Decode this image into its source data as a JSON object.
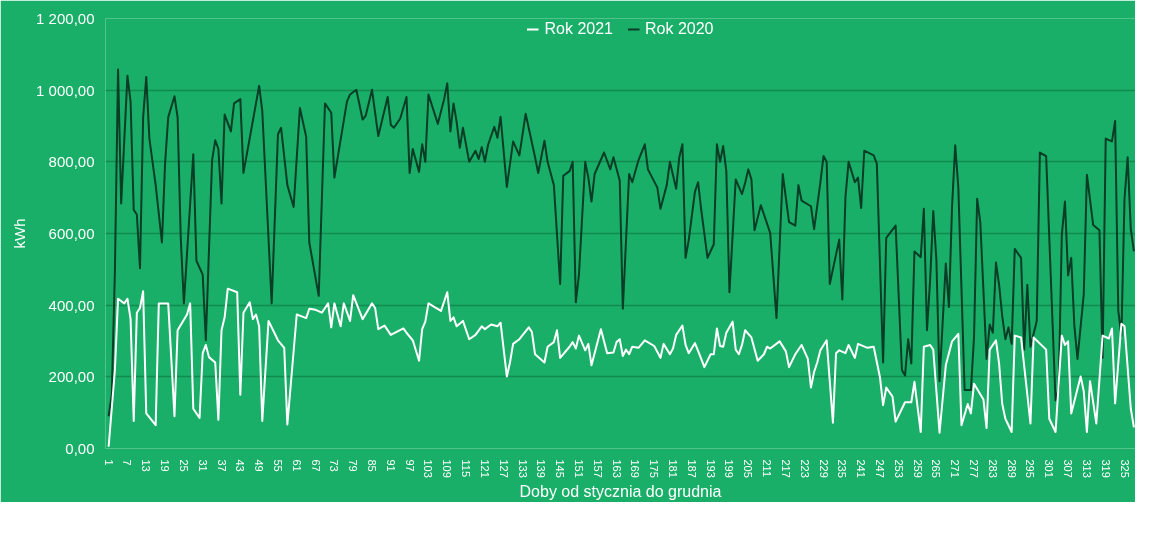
{
  "chart_data": {
    "type": "line",
    "xlabel": "Doby od stycznia do grudnia",
    "ylabel": "kWh",
    "legend": "top",
    "grid": "y",
    "line_style": "solid",
    "marker": "none",
    "xlim": [
      0,
      328.5
    ],
    "xticks": [
      1,
      7,
      13,
      19,
      25,
      31,
      37,
      43,
      49,
      55,
      61,
      67,
      73,
      79,
      85,
      91,
      97,
      103,
      109,
      115,
      121,
      127,
      133,
      139,
      145,
      151,
      157,
      163,
      169,
      175,
      181,
      187,
      193,
      199,
      205,
      211,
      217,
      223,
      229,
      235,
      241,
      247,
      253,
      259,
      265,
      271,
      277,
      283,
      289,
      295,
      301,
      307,
      313,
      319,
      325
    ],
    "ylim": [
      0,
      1200
    ],
    "yticks": [
      {
        "value": 0,
        "label": "0,00"
      },
      {
        "value": 200,
        "label": "200,00"
      },
      {
        "value": 400,
        "label": "400,00"
      },
      {
        "value": 600,
        "label": "600,00"
      },
      {
        "value": 800,
        "label": "800,00"
      },
      {
        "value": 1000,
        "label": "1 000,00"
      },
      {
        "value": 1200,
        "label": "1 200,00"
      }
    ],
    "series": [
      {
        "name": "Rok 2021",
        "color": "#ffffff",
        "x": [
          1,
          3,
          4,
          6,
          7,
          8,
          9,
          10,
          11,
          12,
          13,
          16,
          17,
          20,
          22,
          23,
          26,
          27,
          28,
          30,
          31,
          32,
          33,
          35,
          36,
          37,
          38,
          39,
          42,
          43,
          44,
          46,
          47,
          48,
          49,
          50,
          52,
          55,
          57,
          58,
          61,
          64,
          65,
          67,
          69,
          71,
          72,
          73,
          75,
          76,
          78,
          79,
          82,
          85,
          86,
          87,
          89,
          91,
          95,
          96,
          98,
          100,
          101,
          102,
          103,
          107,
          109,
          110,
          111,
          112,
          114,
          116,
          118,
          120,
          121,
          123,
          125,
          126,
          128,
          129,
          130,
          132,
          135,
          136,
          137,
          140,
          141,
          143,
          144,
          145,
          148,
          149,
          150,
          151,
          153,
          154,
          155,
          158,
          160,
          162,
          163,
          164,
          165,
          166,
          167,
          168,
          170,
          172,
          175,
          177,
          178,
          180,
          181,
          182,
          184,
          185,
          186,
          188,
          190,
          191,
          193,
          194,
          195,
          196,
          197,
          198,
          200,
          201,
          202,
          203,
          204,
          206,
          208,
          210,
          211,
          212,
          215,
          217,
          218,
          220,
          222,
          224,
          225,
          226,
          227,
          228,
          230,
          232,
          233,
          234,
          236,
          237,
          239,
          240,
          243,
          245,
          247,
          248,
          249,
          251,
          252,
          255,
          257,
          258,
          260,
          261,
          263,
          264,
          266,
          268,
          269,
          270,
          272,
          273,
          275,
          276,
          277,
          280,
          281,
          282,
          284,
          285,
          286,
          287,
          289,
          290,
          292,
          295,
          296,
          300,
          301,
          303,
          305,
          306,
          307,
          308,
          311,
          312,
          313,
          314,
          316,
          318,
          320,
          321,
          322,
          324,
          325,
          327,
          328
        ],
        "values": [
          5,
          219,
          418,
          405,
          418,
          361,
          77,
          379,
          392,
          439,
          98,
          65,
          405,
          405,
          90,
          330,
          374,
          405,
          111,
          85,
          266,
          289,
          255,
          240,
          80,
          330,
          366,
          446,
          436,
          150,
          379,
          408,
          361,
          374,
          341,
          77,
          356,
          302,
          281,
          67,
          374,
          364,
          390,
          387,
          379,
          405,
          338,
          405,
          341,
          405,
          356,
          428,
          361,
          405,
          392,
          333,
          343,
          317,
          335,
          323,
          302,
          245,
          333,
          354,
          405,
          384,
          436,
          356,
          366,
          341,
          356,
          305,
          317,
          341,
          333,
          346,
          341,
          351,
          201,
          240,
          292,
          305,
          338,
          325,
          263,
          240,
          284,
          297,
          330,
          253,
          284,
          297,
          279,
          315,
          274,
          292,
          232,
          333,
          266,
          268,
          297,
          305,
          258,
          276,
          263,
          284,
          281,
          302,
          286,
          253,
          292,
          263,
          279,
          317,
          343,
          289,
          266,
          294,
          250,
          227,
          263,
          263,
          335,
          286,
          284,
          323,
          354,
          276,
          263,
          289,
          330,
          310,
          245,
          263,
          284,
          279,
          299,
          271,
          227,
          263,
          289,
          250,
          170,
          214,
          240,
          274,
          302,
          72,
          266,
          274,
          266,
          289,
          253,
          292,
          281,
          284,
          199,
          121,
          170,
          145,
          75,
          129,
          129,
          186,
          46,
          284,
          289,
          276,
          44,
          232,
          266,
          299,
          320,
          65,
          124,
          98,
          181,
          137,
          57,
          276,
          302,
          237,
          124,
          83,
          46,
          315,
          310,
          70,
          310,
          276,
          83,
          46,
          315,
          289,
          299,
          98,
          201,
          160,
          46,
          188,
          70,
          315,
          307,
          335,
          126,
          348,
          341,
          111,
          59
        ]
      },
      {
        "name": "Rok 2020",
        "color": "#0a3d26",
        "x": [
          1,
          2,
          3,
          4,
          5,
          7,
          8,
          9,
          10,
          11,
          12,
          13,
          14,
          16,
          18,
          19,
          20,
          22,
          23,
          24,
          25,
          28,
          29,
          31,
          32,
          34,
          35,
          36,
          37,
          38,
          40,
          41,
          43,
          44,
          49,
          50,
          53,
          55,
          56,
          58,
          60,
          62,
          64,
          65,
          68,
          70,
          72,
          73,
          77,
          78,
          80,
          82,
          83,
          85,
          87,
          90,
          91,
          92,
          94,
          96,
          97,
          98,
          100,
          101,
          102,
          103,
          106,
          108,
          109,
          110,
          111,
          112,
          113,
          114,
          116,
          118,
          119,
          120,
          121,
          122,
          124,
          125,
          126,
          128,
          130,
          132,
          134,
          137,
          138,
          140,
          141,
          143,
          145,
          146,
          148,
          149,
          150,
          151,
          153,
          154,
          155,
          156,
          159,
          161,
          162,
          164,
          165,
          167,
          168,
          170,
          172,
          173,
          176,
          177,
          179,
          180,
          182,
          183,
          184,
          185,
          186,
          188,
          189,
          190,
          192,
          194,
          195,
          196,
          197,
          198,
          199,
          201,
          203,
          204,
          205,
          206,
          207,
          209,
          212,
          214,
          216,
          218,
          220,
          221,
          222,
          225,
          226,
          228,
          229,
          230,
          231,
          234,
          235,
          236,
          237,
          239,
          240,
          241,
          242,
          245,
          246,
          248,
          249,
          252,
          254,
          255,
          256,
          257,
          258,
          260,
          261,
          262,
          263,
          264,
          265,
          266,
          268,
          269,
          270,
          271,
          272,
          274,
          276,
          277,
          278,
          279,
          281,
          282,
          283,
          284,
          285,
          286,
          287,
          288,
          289,
          290,
          292,
          293,
          294,
          295,
          297,
          298,
          300,
          303,
          304,
          305,
          306,
          307,
          308,
          309,
          310,
          312,
          313,
          315,
          317,
          318,
          319,
          321,
          322,
          323,
          324,
          325,
          326,
          327,
          328
        ],
        "values": [
          90,
          150,
          495,
          1058,
          684,
          1040,
          968,
          666,
          653,
          503,
          924,
          1037,
          865,
          735,
          575,
          795,
          924,
          983,
          924,
          588,
          405,
          821,
          524,
          485,
          302,
          805,
          860,
          836,
          684,
          932,
          885,
          963,
          975,
          769,
          1012,
          942,
          405,
          877,
          895,
          735,
          674,
          950,
          870,
          575,
          426,
          963,
          937,
          756,
          968,
          988,
          1001,
          918,
          929,
          1001,
          872,
          981,
          903,
          895,
          921,
          981,
          769,
          836,
          772,
          849,
          800,
          988,
          906,
          975,
          1019,
          885,
          963,
          911,
          839,
          895,
          800,
          831,
          808,
          841,
          800,
          847,
          898,
          867,
          926,
          730,
          857,
          818,
          934,
          813,
          769,
          859,
          800,
          735,
          459,
          761,
          774,
          800,
          408,
          485,
          800,
          756,
          689,
          766,
          826,
          779,
          813,
          748,
          390,
          766,
          743,
          805,
          849,
          779,
          728,
          669,
          735,
          800,
          725,
          813,
          849,
          532,
          581,
          717,
          743,
          666,
          532,
          570,
          849,
          800,
          844,
          774,
          436,
          751,
          710,
          741,
          779,
          751,
          609,
          679,
          601,
          364,
          766,
          632,
          622,
          735,
          692,
          676,
          612,
          743,
          816,
          800,
          459,
          583,
          416,
          702,
          800,
          743,
          756,
          671,
          831,
          818,
          795,
          240,
          588,
          622,
          219,
          204,
          305,
          237,
          550,
          534,
          669,
          330,
          470,
          663,
          526,
          188,
          516,
          395,
          676,
          846,
          728,
          163,
          163,
          310,
          697,
          632,
          250,
          346,
          323,
          519,
          457,
          369,
          305,
          338,
          292,
          557,
          532,
          276,
          457,
          284,
          356,
          826,
          816,
          134,
          168,
          596,
          689,
          483,
          532,
          343,
          250,
          431,
          764,
          624,
          609,
          253,
          865,
          857,
          914,
          385,
          315,
          697,
          813,
          612,
          550
        ]
      }
    ]
  }
}
